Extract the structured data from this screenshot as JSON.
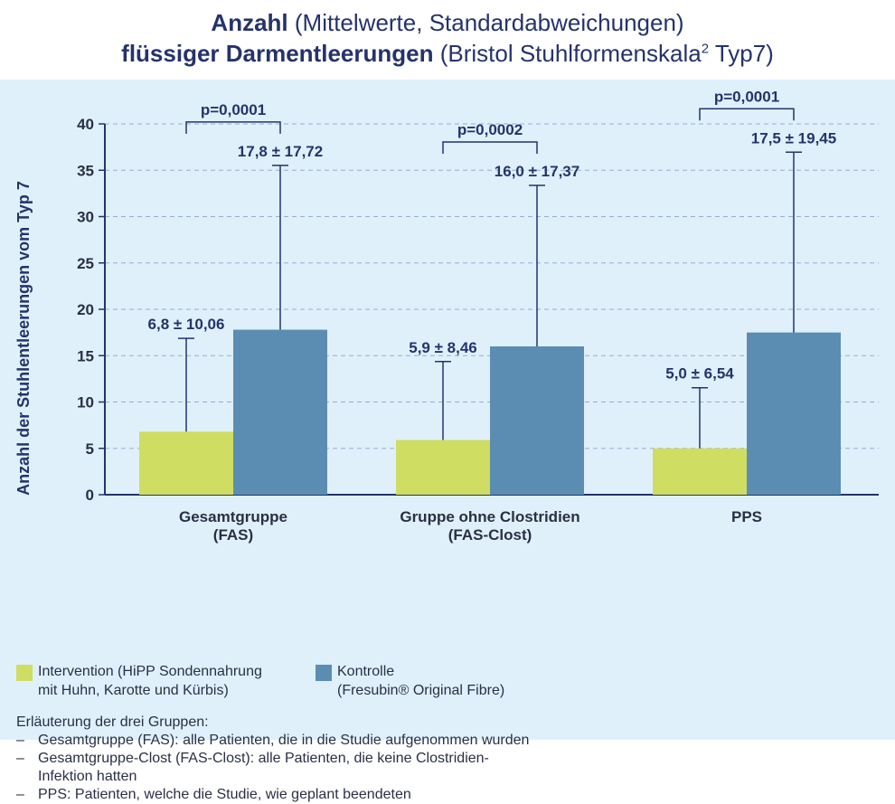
{
  "title": {
    "line1_bold": "Anzahl",
    "line1_rest": "(Mittelwerte, Standardabweichungen)",
    "line2_bold": "flüssiger Darmentleerungen",
    "line2_rest": "(Bristol Stuhlformenskala",
    "line2_sup": "2",
    "line2_end": "Typ7)"
  },
  "chart_data": {
    "type": "bar",
    "ylabel": "Anzahl der Stuhlentleerungen vom Typ 7",
    "xlabel": "",
    "ylim": [
      0,
      40
    ],
    "yticks": [
      0,
      5,
      10,
      15,
      20,
      25,
      30,
      35,
      40
    ],
    "grid": "horizontal dashed",
    "categories": [
      [
        "Gesamtgruppe",
        "(FAS)"
      ],
      [
        "Gruppe ohne Clostridien",
        "(FAS-Clost)"
      ],
      [
        "PPS"
      ]
    ],
    "series": [
      {
        "name": "Intervention (HiPP Sondennahrung mit Huhn, Karotte und Kürbis)",
        "color": "#cfdd63",
        "values": [
          6.8,
          5.9,
          5.0
        ],
        "sd": [
          10.06,
          8.46,
          6.54
        ],
        "labels": [
          "6,8 ± 10,06",
          "5,9 ± 8,46",
          "5,0 ± 6,54"
        ]
      },
      {
        "name": "Kontrolle (Fresubin® Original Fibre)",
        "color": "#5b8db3",
        "values": [
          17.8,
          16.0,
          17.5
        ],
        "sd": [
          17.72,
          17.37,
          19.45
        ],
        "labels": [
          "17,8 ± 17,72",
          "16,0 ± 17,37",
          "17,5 ± 19,45"
        ]
      }
    ],
    "pvalues": [
      "p=0,0001",
      "p=0,0002",
      "p=0,0001"
    ]
  },
  "legend": [
    {
      "color": "#cfdd63",
      "lines": [
        "Intervention (HiPP Sondennahrung",
        "mit Huhn, Karotte und Kürbis)"
      ]
    },
    {
      "color": "#5b8db3",
      "lines": [
        "Kontrolle",
        "(Fresubin® Original Fibre)"
      ]
    }
  ],
  "notes": {
    "heading": "Erläuterung der drei Gruppen:",
    "dash": "–",
    "items": [
      [
        "Gesamtgruppe (FAS): alle Patienten, die in die Studie aufgenommen wurden"
      ],
      [
        "Gesamtgruppe-Clost (FAS-Clost): alle Patienten, die keine Clostridien-",
        "Infektion hatten"
      ],
      [
        "PPS: Patienten, welche die Studie, wie geplant beendeten"
      ]
    ]
  },
  "colors": {
    "axis": "#25336b",
    "text": "#2a2f45",
    "grid": "#9aaccb",
    "panel": "#dff0fb"
  }
}
